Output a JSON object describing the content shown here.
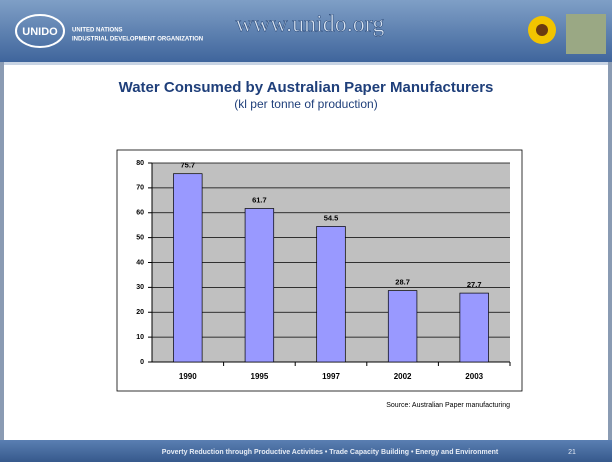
{
  "header": {
    "logo": "UNIDO",
    "org_line1": "UNITED NATIONS",
    "org_line2": "INDUSTRIAL DEVELOPMENT ORGANIZATION",
    "url": "www.unido.org"
  },
  "chart_data": {
    "type": "bar",
    "title": "Water Consumed by Australian Paper Manufacturers",
    "subtitle": "(kl per tonne of production)",
    "categories": [
      "1990",
      "1995",
      "1997",
      "2002",
      "2003"
    ],
    "values": [
      75.7,
      61.7,
      54.5,
      28.7,
      27.7
    ],
    "color": "#9999ff",
    "ylim": [
      0,
      80
    ],
    "yticks": [
      0,
      10,
      20,
      30,
      40,
      50,
      60,
      70,
      80
    ],
    "grid": true,
    "data_labels": true
  },
  "source": "Source: Australian Paper manufacturing",
  "footer": {
    "tagline": "Poverty Reduction through Productive Activities  •  Trade Capacity Building  •  Energy and Environment",
    "page": "21"
  }
}
